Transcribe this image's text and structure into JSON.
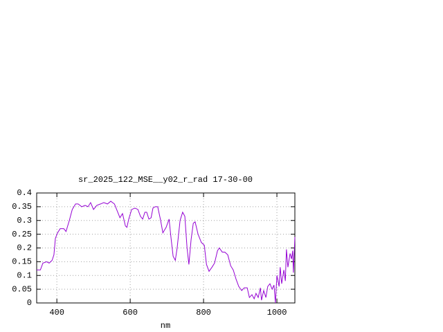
{
  "chart_data": {
    "type": "line",
    "title": "sr_2025_122_MSE__y02_r_rad 17-30-00",
    "xlabel": "nm",
    "xlim": [
      345,
      1049
    ],
    "xticks": [
      400,
      600,
      800,
      1000
    ],
    "ylim": [
      0,
      0.4
    ],
    "yticks": [
      0,
      0.05,
      0.1,
      0.15,
      0.2,
      0.25,
      0.3,
      0.35,
      0.4
    ],
    "grid": true,
    "x": [
      345,
      355,
      362,
      372,
      379,
      387,
      392,
      396,
      402,
      409,
      419,
      425,
      434,
      442,
      451,
      458,
      468,
      477,
      485,
      492,
      500,
      509,
      519,
      528,
      538,
      547,
      557,
      566,
      572,
      579,
      587,
      591,
      596,
      604,
      613,
      621,
      628,
      634,
      640,
      645,
      651,
      657,
      662,
      668,
      675,
      683,
      689,
      698,
      706,
      711,
      717,
      723,
      728,
      736,
      743,
      749,
      755,
      760,
      766,
      772,
      777,
      785,
      794,
      802,
      808,
      815,
      823,
      830,
      838,
      843,
      851,
      858,
      866,
      874,
      881,
      889,
      896,
      904,
      911,
      919,
      925,
      932,
      938,
      943,
      949,
      955,
      958,
      964,
      970,
      975,
      981,
      987,
      992,
      996,
      1000,
      1006,
      1009,
      1013,
      1019,
      1023,
      1026,
      1030,
      1036,
      1040,
      1043,
      1045,
      1049
    ],
    "series": [
      {
        "color": "#9400d3",
        "values": [
          0.12,
          0.12,
          0.145,
          0.15,
          0.145,
          0.155,
          0.175,
          0.235,
          0.255,
          0.27,
          0.27,
          0.26,
          0.3,
          0.34,
          0.36,
          0.36,
          0.35,
          0.355,
          0.35,
          0.365,
          0.34,
          0.355,
          0.36,
          0.365,
          0.36,
          0.37,
          0.36,
          0.33,
          0.31,
          0.325,
          0.28,
          0.275,
          0.305,
          0.34,
          0.345,
          0.34,
          0.315,
          0.305,
          0.33,
          0.33,
          0.305,
          0.31,
          0.345,
          0.35,
          0.35,
          0.3,
          0.255,
          0.275,
          0.305,
          0.24,
          0.17,
          0.155,
          0.2,
          0.3,
          0.33,
          0.315,
          0.2,
          0.14,
          0.23,
          0.29,
          0.295,
          0.25,
          0.22,
          0.21,
          0.14,
          0.115,
          0.13,
          0.145,
          0.19,
          0.2,
          0.185,
          0.185,
          0.175,
          0.135,
          0.12,
          0.085,
          0.06,
          0.045,
          0.055,
          0.055,
          0.02,
          0.03,
          0.015,
          0.035,
          0.02,
          0.055,
          0.01,
          0.045,
          0.02,
          0.06,
          0.07,
          0.05,
          0.065,
          0.0,
          0.1,
          0.06,
          0.13,
          0.07,
          0.12,
          0.08,
          0.195,
          0.13,
          0.18,
          0.16,
          0.19,
          0.11,
          0.24
        ]
      }
    ]
  }
}
